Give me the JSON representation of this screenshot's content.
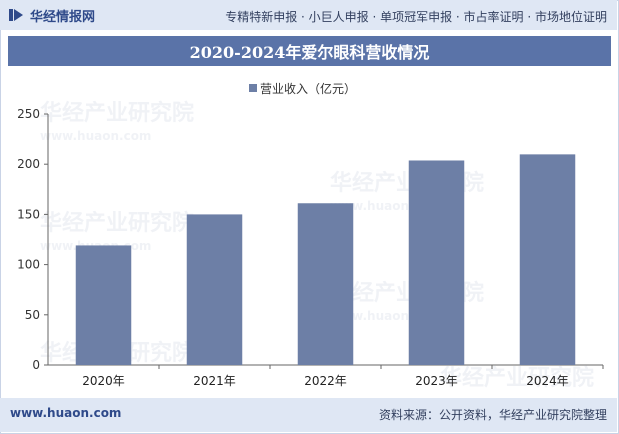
{
  "header": {
    "logo_text": "华经情报网",
    "tagline": "专精特新申报 · 小巨人申报 · 单项冠军申报 · 市占率证明 · 市场地位证明"
  },
  "footer": {
    "website": "www.huaon.com",
    "source": "资料来源：公开资料，华经产业研究院整理"
  },
  "watermark": {
    "cn": "华经产业研究院",
    "en": "www.huaon.com"
  },
  "colors": {
    "bar": "#6d7fa6",
    "title_bg": "#5a73a8",
    "band_bg": "#dfe7f4"
  },
  "chart_data": {
    "type": "bar",
    "title": "2020-2024年爱尔眼科营收情况",
    "categories": [
      "2020年",
      "2021年",
      "2022年",
      "2023年",
      "2024年"
    ],
    "series": [
      {
        "name": "营业收入（亿元）",
        "values": [
          119.1,
          150.0,
          161.1,
          203.7,
          209.8
        ]
      }
    ],
    "ylim": [
      0,
      250
    ],
    "yticks": [
      0,
      50,
      100,
      150,
      200,
      250
    ],
    "xlabel": "",
    "ylabel": "",
    "legend_position": "top-center",
    "grid": false
  }
}
